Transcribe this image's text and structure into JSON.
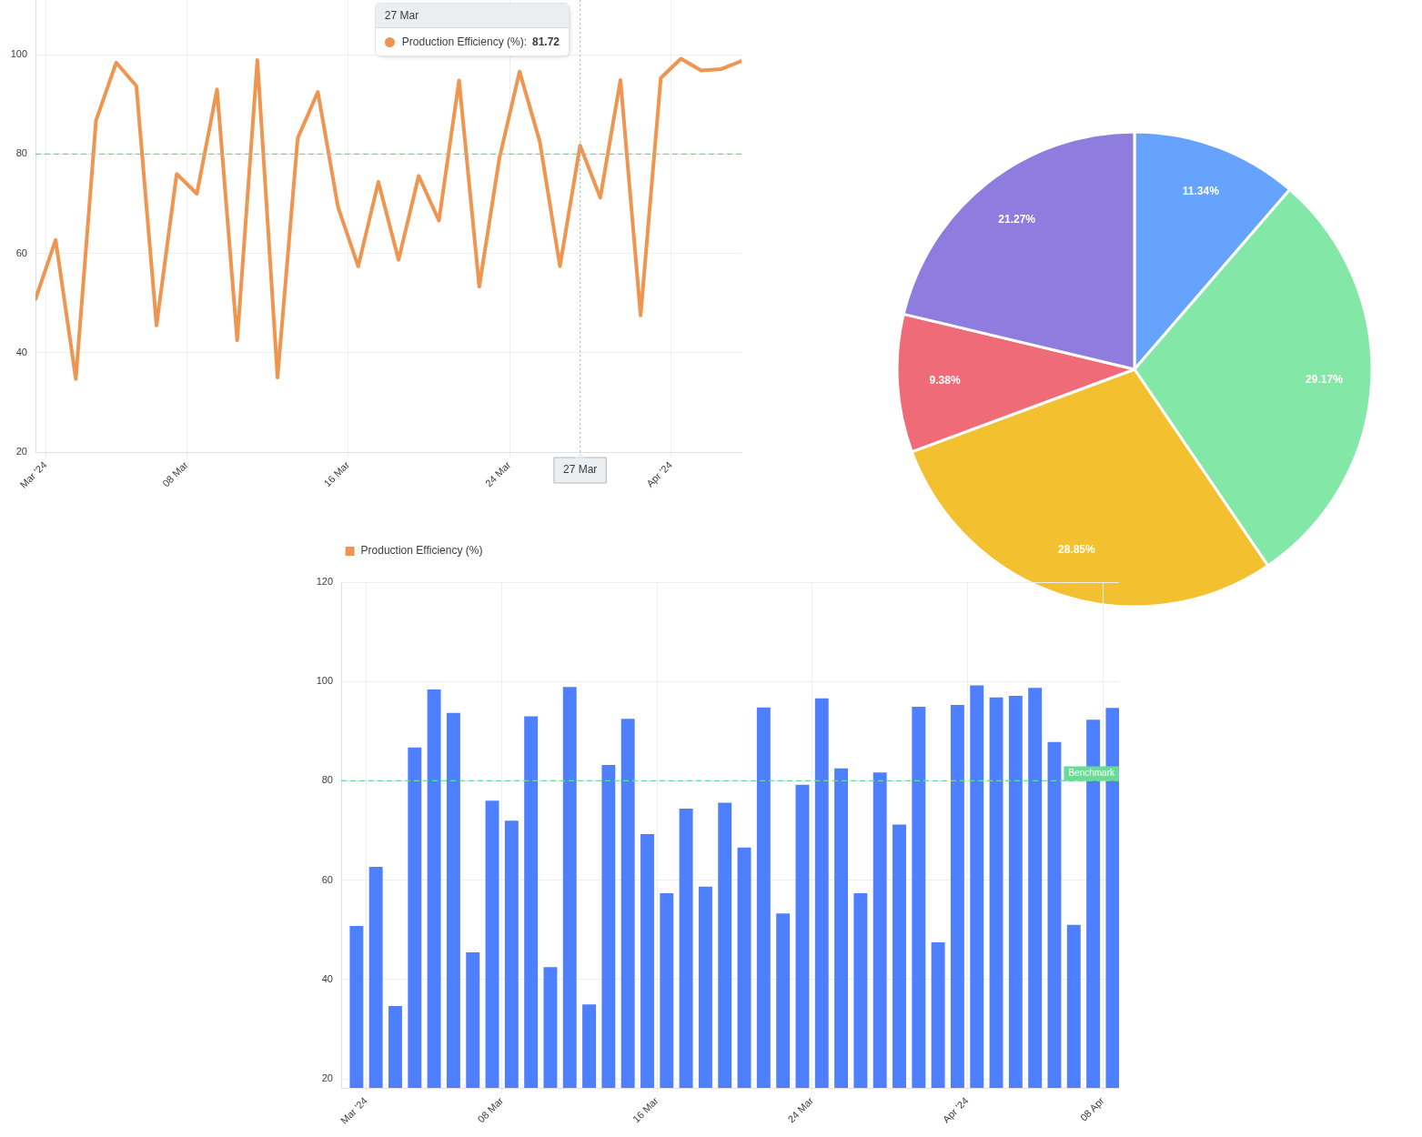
{
  "chart_data": [
    {
      "type": "line",
      "x": [
        "2024-02-29T12:00",
        "2024-03-01T12:00",
        "2024-03-02T12:00",
        "2024-03-03T12:00",
        "2024-03-04T12:00",
        "2024-03-05T12:00",
        "2024-03-06T12:00",
        "2024-03-07T12:00",
        "2024-03-08T12:00",
        "2024-03-09T12:00",
        "2024-03-10T12:00",
        "2024-03-11T12:00",
        "2024-03-12T12:00",
        "2024-03-13T12:00",
        "2024-03-14T12:00",
        "2024-03-15T12:00",
        "2024-03-16T12:00",
        "2024-03-17T12:00",
        "2024-03-18T12:00",
        "2024-03-19T12:00",
        "2024-03-20T12:00",
        "2024-03-21T12:00",
        "2024-03-22T12:00",
        "2024-03-23T12:00",
        "2024-03-24T12:00",
        "2024-03-25T12:00",
        "2024-03-26T12:00",
        "2024-03-27T12:00",
        "2024-03-28T12:00",
        "2024-03-29T12:00",
        "2024-03-30T12:00",
        "2024-03-31T12:00",
        "2024-04-01T12:00",
        "2024-04-02T12:00",
        "2024-04-03T12:00",
        "2024-04-04T12:00"
      ],
      "series": [
        {
          "name": "Production Efficiency (%)",
          "color": "#f0954f",
          "values": [
            50.8,
            62.7,
            34.7,
            86.7,
            98.4,
            93.7,
            45.5,
            76.0,
            72.0,
            93.0,
            42.5,
            98.9,
            35.0,
            83.2,
            92.5,
            69.3,
            57.4,
            74.4,
            58.7,
            75.6,
            66.6,
            94.8,
            53.3,
            79.2,
            96.6,
            82.5,
            57.4,
            81.72,
            71.2,
            94.9,
            47.5,
            95.3,
            99.2,
            96.8,
            97.1,
            98.7
          ]
        }
      ],
      "xlim": [
        "2024-02-29T12:00",
        "2024-04-04T12:00"
      ],
      "xticks": [
        {
          "value": "2024-03-01",
          "label": "Mar '24"
        },
        {
          "value": "2024-03-08",
          "label": "08 Mar"
        },
        {
          "value": "2024-03-16",
          "label": "16 Mar"
        },
        {
          "value": "2024-03-24",
          "label": "24 Mar"
        },
        {
          "value": "2024-04-01",
          "label": "Apr '24"
        }
      ],
      "ylim": [
        20,
        111
      ],
      "yticks": [
        20,
        40,
        60,
        80,
        100
      ],
      "grid": true,
      "legend": "bottom",
      "ref_lines": [
        {
          "axis": "y",
          "value": 80,
          "color": "#66dc94",
          "line_style": "dashed"
        },
        {
          "axis": "x",
          "value": "2024-03-27T12:00",
          "label": "27 Mar",
          "color": "#b6b6b6",
          "line_style": "dotted"
        }
      ],
      "annotations": [
        "27 Mar",
        "Production Efficiency (%):",
        "81.72"
      ]
    },
    {
      "type": "pie",
      "categories": [
        null,
        null,
        null,
        null,
        null
      ],
      "values": [
        11.34,
        29.17,
        28.85,
        9.38,
        21.27
      ],
      "colors": [
        "#66a3fe",
        "#83e8a7",
        "#f3c030",
        "#ef6b78",
        "#8e7cde"
      ],
      "value_labels": [
        "11.34%",
        "29.17%",
        "28.85%",
        "9.38%",
        "21.27%"
      ]
    },
    {
      "type": "bar",
      "x": [
        "2024-02-29T12:00",
        "2024-03-01T12:00",
        "2024-03-02T12:00",
        "2024-03-03T12:00",
        "2024-03-04T12:00",
        "2024-03-05T12:00",
        "2024-03-06T12:00",
        "2024-03-07T12:00",
        "2024-03-08T12:00",
        "2024-03-09T12:00",
        "2024-03-10T12:00",
        "2024-03-11T12:00",
        "2024-03-12T12:00",
        "2024-03-13T12:00",
        "2024-03-14T12:00",
        "2024-03-15T12:00",
        "2024-03-16T12:00",
        "2024-03-17T12:00",
        "2024-03-18T12:00",
        "2024-03-19T12:00",
        "2024-03-20T12:00",
        "2024-03-21T12:00",
        "2024-03-22T12:00",
        "2024-03-23T12:00",
        "2024-03-24T12:00",
        "2024-03-25T12:00",
        "2024-03-26T12:00",
        "2024-03-27T12:00",
        "2024-03-28T12:00",
        "2024-03-29T12:00",
        "2024-03-30T12:00",
        "2024-03-31T12:00",
        "2024-04-01T12:00",
        "2024-04-02T12:00",
        "2024-04-03T12:00",
        "2024-04-04T12:00",
        "2024-04-05T12:00",
        "2024-04-06T12:00",
        "2024-04-07T12:00",
        "2024-04-08T12:00"
      ],
      "series": [
        {
          "color": "#4e7ffe",
          "values": [
            50.8,
            62.7,
            34.7,
            86.7,
            98.4,
            93.7,
            45.5,
            76.0,
            72.0,
            93.0,
            42.5,
            98.9,
            35.0,
            83.2,
            92.5,
            69.3,
            57.4,
            74.4,
            58.7,
            75.6,
            66.6,
            94.8,
            53.3,
            79.2,
            96.6,
            82.5,
            57.4,
            81.7,
            71.2,
            94.9,
            47.5,
            95.3,
            99.2,
            96.8,
            97.1,
            98.7,
            87.8,
            51.0,
            92.3,
            94.7
          ]
        }
      ],
      "xlim": [
        "2024-02-28T17:00",
        "2024-04-08T20:00"
      ],
      "xticks": [
        {
          "value": "2024-03-01",
          "label": "Mar '24"
        },
        {
          "value": "2024-03-08",
          "label": "08 Mar"
        },
        {
          "value": "2024-03-16",
          "label": "16 Mar"
        },
        {
          "value": "2024-03-24",
          "label": "24 Mar"
        },
        {
          "value": "2024-04-01",
          "label": "Apr '24"
        },
        {
          "value": "2024-04-08",
          "label": "08 Apr"
        }
      ],
      "ylim": [
        18.2,
        120
      ],
      "yticks": [
        20,
        40,
        60,
        80,
        100,
        120
      ],
      "grid": true,
      "ref_lines": [
        {
          "axis": "y",
          "value": 80,
          "label": "Benchmark",
          "color": "#66dc94",
          "line_style": "dashed"
        }
      ]
    }
  ]
}
